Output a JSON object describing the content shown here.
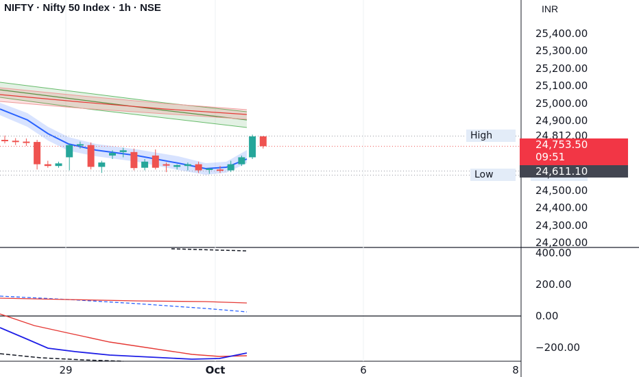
{
  "header": {
    "title": "NIFTY · Nifty 50 Index · 1h · NSE",
    "currency": "INR"
  },
  "price_axis": {
    "labels": [
      "25,400.00",
      "25,300.00",
      "25,200.00",
      "25,100.00",
      "25,000.00",
      "24,900.00",
      "24,500.00",
      "24,400.00",
      "24,300.00",
      "24,200.00"
    ],
    "values": [
      25400,
      25300,
      25200,
      25100,
      25000,
      24900,
      24500,
      24400,
      24300,
      24200
    ]
  },
  "markers": {
    "high_label": "High",
    "high_value": "24,812.00",
    "low_label": "Low",
    "low_value": "24,587.70",
    "last_price": "24,753.50",
    "countdown": "09:51",
    "marker_price": "24,611.10"
  },
  "oscillator_axis": {
    "labels": [
      "400.00",
      "200.00",
      "0.00",
      "−200.00"
    ],
    "values": [
      400,
      200,
      0,
      -200
    ]
  },
  "time_axis": {
    "labels": [
      "29",
      "Oct",
      "6",
      "8"
    ]
  },
  "colors": {
    "up": "#26a69a",
    "down": "#ef5350",
    "blue": "#2962ff",
    "red": "#e53935",
    "green": "#43a047"
  },
  "chart_data": {
    "type": "candlestick",
    "title": "NIFTY · Nifty 50 Index · 1h · NSE",
    "ylim": [
      24180,
      25470
    ],
    "high": 24812.0,
    "low": 24587.7,
    "last": 24753.5,
    "candles": [
      {
        "o": 24790,
        "h": 24815,
        "l": 24770,
        "c": 24785
      },
      {
        "o": 24785,
        "h": 24800,
        "l": 24760,
        "c": 24780
      },
      {
        "o": 24780,
        "h": 24798,
        "l": 24755,
        "c": 24778
      },
      {
        "o": 24778,
        "h": 24790,
        "l": 24620,
        "c": 24650
      },
      {
        "o": 24650,
        "h": 24670,
        "l": 24630,
        "c": 24640
      },
      {
        "o": 24640,
        "h": 24665,
        "l": 24630,
        "c": 24655
      },
      {
        "o": 24690,
        "h": 24768,
        "l": 24615,
        "c": 24760
      },
      {
        "o": 24760,
        "h": 24780,
        "l": 24740,
        "c": 24765
      },
      {
        "o": 24760,
        "h": 24775,
        "l": 24620,
        "c": 24635
      },
      {
        "o": 24635,
        "h": 24670,
        "l": 24600,
        "c": 24660
      },
      {
        "o": 24700,
        "h": 24730,
        "l": 24680,
        "c": 24715
      },
      {
        "o": 24720,
        "h": 24745,
        "l": 24690,
        "c": 24730
      },
      {
        "o": 24720,
        "h": 24740,
        "l": 24615,
        "c": 24628
      },
      {
        "o": 24630,
        "h": 24680,
        "l": 24615,
        "c": 24665
      },
      {
        "o": 24700,
        "h": 24735,
        "l": 24620,
        "c": 24630
      },
      {
        "o": 24650,
        "h": 24660,
        "l": 24605,
        "c": 24645
      },
      {
        "o": 24635,
        "h": 24650,
        "l": 24620,
        "c": 24645
      },
      {
        "o": 24640,
        "h": 24660,
        "l": 24615,
        "c": 24650
      },
      {
        "o": 24650,
        "h": 24665,
        "l": 24600,
        "c": 24615
      },
      {
        "o": 24620,
        "h": 24630,
        "l": 24595,
        "c": 24625
      },
      {
        "o": 24620,
        "h": 24640,
        "l": 24600,
        "c": 24615
      },
      {
        "o": 24615,
        "h": 24670,
        "l": 24605,
        "c": 24650
      },
      {
        "o": 24650,
        "h": 24700,
        "l": 24640,
        "c": 24690
      },
      {
        "o": 24690,
        "h": 24820,
        "l": 24680,
        "c": 24810
      },
      {
        "o": 24810,
        "h": 24812,
        "l": 24740,
        "c": 24753.5
      }
    ]
  }
}
